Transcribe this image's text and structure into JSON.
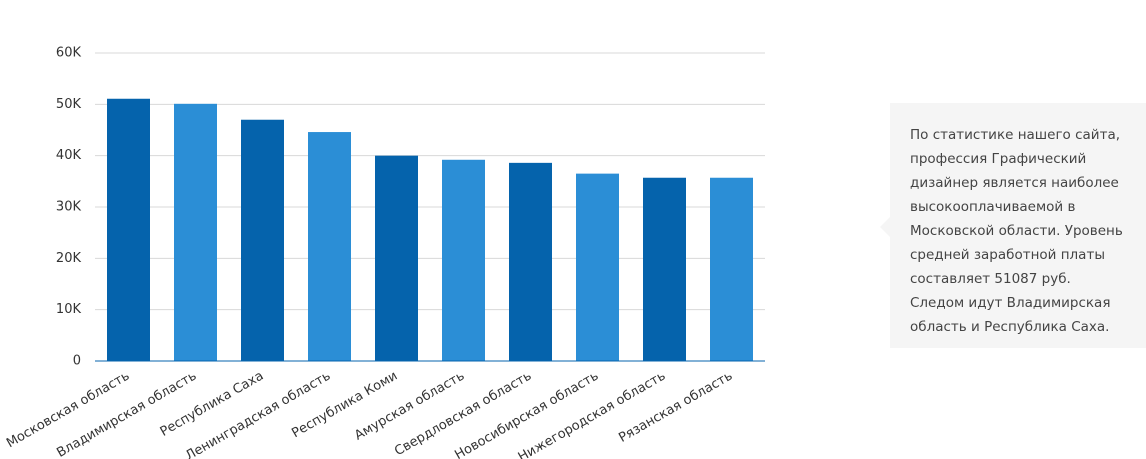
{
  "chart_data": {
    "type": "bar",
    "categories": [
      "Московская область",
      "Владимирская область",
      "Республика Саха",
      "Ленинградская область",
      "Республика Коми",
      "Амурская область",
      "Свердловская область",
      "Новосибирская область",
      "Нижегородская область",
      "Рязанская область"
    ],
    "values": [
      51087,
      50100,
      47000,
      44600,
      40000,
      39200,
      38600,
      36500,
      35700,
      35700
    ],
    "colors": [
      "#0563ac",
      "#2b8ed6",
      "#0563ac",
      "#2b8ed6",
      "#0563ac",
      "#2b8ed6",
      "#0563ac",
      "#2b8ed6",
      "#0563ac",
      "#2b8ed6"
    ],
    "ylim": [
      0,
      60000
    ],
    "yticks": [
      0,
      {
        "value": 10000,
        "label": "10K"
      },
      {
        "value": 20000,
        "label": "20K"
      },
      {
        "value": 30000,
        "label": "30K"
      },
      {
        "value": 40000,
        "label": "40K"
      },
      {
        "value": 50000,
        "label": "50K"
      },
      {
        "value": 60000,
        "label": "60K"
      }
    ],
    "grid": true,
    "annotation": "По статистике нашего сайта, профессия Графический дизайнер является наиболее высокооплачиваемой в Московской области. Уровень средней заработной платы составляет 51087 руб. Следом идут Владимирская область и Республика Саха."
  }
}
